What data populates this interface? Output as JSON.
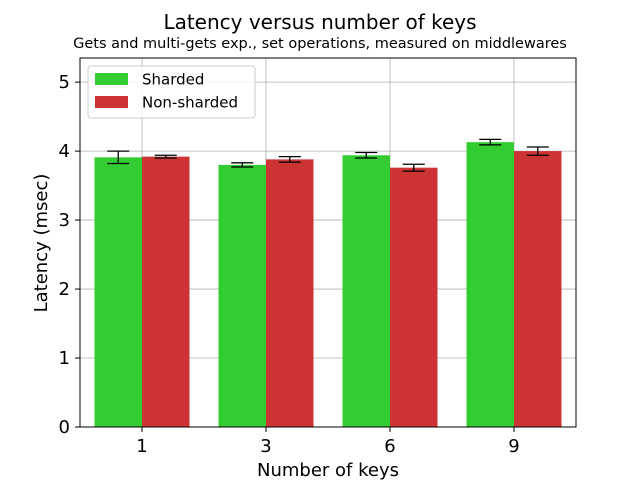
{
  "chart_data": {
    "type": "bar",
    "title": "Latency versus number of keys",
    "subtitle": "Gets and multi-gets exp., set operations, measured on middlewares",
    "xlabel": "Number of keys",
    "ylabel": "Latency (msec)",
    "categories": [
      "1",
      "3",
      "6",
      "9"
    ],
    "ylim": [
      0,
      5.35
    ],
    "yticks": [
      "0",
      "1",
      "2",
      "3",
      "4",
      "5"
    ],
    "grid": true,
    "legend_position": "upper-left",
    "series": [
      {
        "name": "Sharded",
        "color": "#33cc33",
        "values": [
          3.91,
          3.8,
          3.94,
          4.13
        ],
        "errors": [
          0.09,
          0.03,
          0.04,
          0.04
        ]
      },
      {
        "name": "Non-sharded",
        "color": "#cc3333",
        "values": [
          3.92,
          3.88,
          3.76,
          4.0
        ],
        "errors": [
          0.02,
          0.04,
          0.05,
          0.06
        ]
      }
    ]
  }
}
